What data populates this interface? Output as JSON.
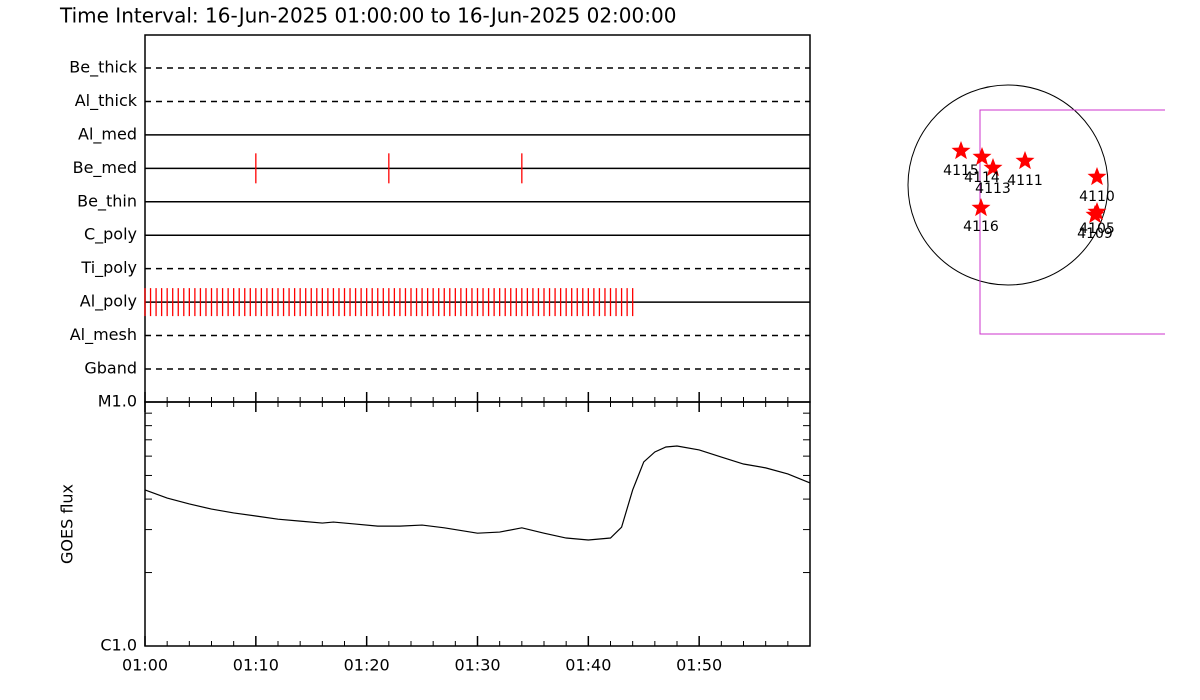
{
  "title": "Time Interval: 16-Jun-2025 01:00:00 to 16-Jun-2025 02:00:00",
  "chart_data": [
    {
      "type": "timeline",
      "color": "#ff0000",
      "xlim": [
        0,
        60
      ],
      "rows": [
        {
          "name": "Be_thick",
          "dashed": true,
          "events": []
        },
        {
          "name": "Al_thick",
          "dashed": true,
          "events": []
        },
        {
          "name": "Al_med",
          "dashed": false,
          "events": []
        },
        {
          "name": "Be_med",
          "dashed": false,
          "events": [
            10,
            22,
            34
          ]
        },
        {
          "name": "Be_thin",
          "dashed": false,
          "events": []
        },
        {
          "name": "C_poly",
          "dashed": false,
          "events": []
        },
        {
          "name": "Ti_poly",
          "dashed": true,
          "events": []
        },
        {
          "name": "Al_poly",
          "dashed": false,
          "events": [
            0,
            0.5,
            1,
            1.5,
            2,
            2.5,
            3,
            3.5,
            4,
            4.5,
            5,
            5.5,
            6,
            6.5,
            7,
            7.5,
            8,
            8.5,
            9,
            9.5,
            10,
            10.5,
            11,
            11.5,
            12,
            12.5,
            13,
            13.5,
            14,
            14.5,
            15,
            15.5,
            16,
            16.5,
            17,
            17.5,
            18,
            18.5,
            19,
            19.5,
            20,
            20.5,
            21,
            21.5,
            22,
            22.5,
            23,
            23.5,
            24,
            24.5,
            25,
            25.5,
            26,
            26.5,
            27,
            27.5,
            28,
            28.5,
            29,
            29.5,
            30,
            30.5,
            31,
            31.5,
            32,
            32.5,
            33,
            33.5,
            34,
            34.5,
            35,
            35.5,
            36,
            36.5,
            37,
            37.5,
            38,
            38.5,
            39,
            39.5,
            40,
            40.5,
            41,
            41.5,
            42,
            42.5,
            43,
            43.5,
            44
          ]
        },
        {
          "name": "Al_mesh",
          "dashed": true,
          "events": []
        },
        {
          "name": "Gband",
          "dashed": true,
          "events": []
        }
      ]
    },
    {
      "type": "line",
      "ylabel": "GOES flux",
      "color": "#000000",
      "ylog": true,
      "xlim": [
        0,
        60
      ],
      "xticks": [
        {
          "value": 0,
          "label": "01:00"
        },
        {
          "value": 10,
          "label": "01:10"
        },
        {
          "value": 20,
          "label": "01:20"
        },
        {
          "value": 30,
          "label": "01:30"
        },
        {
          "value": 40,
          "label": "01:40"
        },
        {
          "value": 50,
          "label": "01:50"
        }
      ],
      "xminor": [
        2,
        4,
        6,
        8,
        12,
        14,
        16,
        18,
        22,
        24,
        26,
        28,
        32,
        34,
        36,
        38,
        42,
        44,
        46,
        48,
        52,
        54,
        56,
        58
      ],
      "ylim": [
        1e-06,
        1e-05
      ],
      "yticks": [
        {
          "value": 1e-06,
          "label": "C1.0"
        },
        {
          "value": 1e-05,
          "label": "M1.0"
        }
      ],
      "yminor": [
        2e-06,
        3e-06,
        4e-06,
        5e-06,
        6e-06,
        7e-06,
        8e-06,
        9e-06
      ],
      "x": [
        0,
        2,
        4,
        6,
        8,
        10,
        12,
        14,
        16,
        17,
        19,
        21,
        23,
        25,
        27,
        30,
        32,
        34,
        36,
        38,
        40,
        42,
        43,
        44,
        45,
        46,
        47,
        48,
        50,
        52,
        54,
        56,
        58,
        60
      ],
      "values": [
        4.36e-06,
        4.04e-06,
        3.82e-06,
        3.64e-06,
        3.51e-06,
        3.41e-06,
        3.31e-06,
        3.25e-06,
        3.19e-06,
        3.22e-06,
        3.16e-06,
        3.1e-06,
        3.1e-06,
        3.13e-06,
        3.05e-06,
        2.9e-06,
        2.93e-06,
        3.05e-06,
        2.9e-06,
        2.77e-06,
        2.72e-06,
        2.77e-06,
        3.07e-06,
        4.36e-06,
        5.68e-06,
        6.24e-06,
        6.54e-06,
        6.6e-06,
        6.36e-06,
        5.95e-06,
        5.57e-06,
        5.37e-06,
        5.07e-06,
        4.66e-06
      ]
    }
  ],
  "regions": [
    "4115",
    "4114",
    "4113",
    "4111",
    "4110",
    "4116",
    "4105",
    "4109"
  ]
}
